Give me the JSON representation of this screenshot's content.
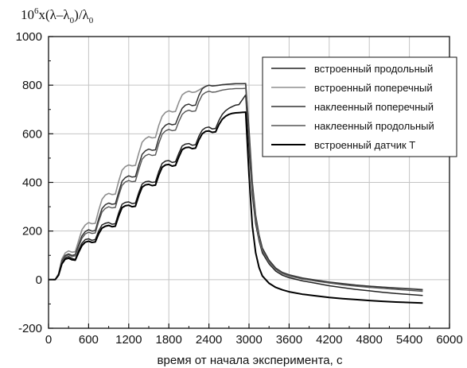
{
  "chart_data": {
    "type": "line",
    "title": "",
    "xlabel": "время от начала эксперимента, с",
    "ylabel": {
      "parts": [
        "10",
        "6",
        "x(λ–λ",
        "0",
        ")/λ",
        "0"
      ]
    },
    "xlim": [
      0,
      6000
    ],
    "ylim": [
      -200,
      1000
    ],
    "xticks": [
      "0",
      "600",
      "1200",
      "1800",
      "2400",
      "3000",
      "3600",
      "4200",
      "4800",
      "5400",
      "6000"
    ],
    "yticks": [
      "-200",
      "0",
      "200",
      "400",
      "600",
      "800",
      "1000"
    ],
    "grid": true,
    "legend_position": "top-right",
    "series": [
      {
        "name": "встроенный продольный",
        "color": "#222222",
        "x": [
          0,
          100,
          150,
          200,
          250,
          300,
          350,
          400,
          450,
          500,
          550,
          600,
          650,
          700,
          750,
          800,
          850,
          900,
          950,
          1000,
          1050,
          1100,
          1150,
          1200,
          1250,
          1300,
          1350,
          1400,
          1450,
          1500,
          1550,
          1600,
          1650,
          1700,
          1750,
          1800,
          1850,
          1900,
          1950,
          2000,
          2050,
          2100,
          2150,
          2200,
          2250,
          2300,
          2350,
          2400,
          2450,
          2500,
          2550,
          2600,
          2650,
          2700,
          2750,
          2800,
          2850,
          2900,
          2950,
          3000,
          3050,
          3100,
          3150,
          3200,
          3300,
          3400,
          3500,
          3600,
          3800,
          4000,
          4200,
          4400,
          4600,
          4800,
          5000,
          5200,
          5400,
          5600
        ],
        "y": [
          0,
          0,
          20,
          70,
          90,
          95,
          88,
          83,
          120,
          150,
          165,
          168,
          162,
          165,
          200,
          225,
          232,
          235,
          228,
          230,
          275,
          310,
          318,
          320,
          313,
          315,
          358,
          393,
          403,
          405,
          400,
          402,
          445,
          478,
          488,
          490,
          482,
          485,
          520,
          550,
          558,
          560,
          553,
          555,
          590,
          615,
          625,
          628,
          620,
          622,
          655,
          680,
          695,
          705,
          712,
          718,
          720,
          740,
          760,
          540,
          350,
          230,
          160,
          110,
          65,
          35,
          18,
          8,
          -5,
          -15,
          -25,
          -33,
          -40,
          -46,
          -52,
          -57,
          -61,
          -65
        ]
      },
      {
        "name": "встроенный поперечный",
        "color": "#8f8f8f",
        "x": [
          0,
          100,
          150,
          200,
          250,
          300,
          350,
          400,
          450,
          500,
          550,
          600,
          650,
          700,
          750,
          800,
          850,
          900,
          950,
          1000,
          1050,
          1100,
          1150,
          1200,
          1250,
          1300,
          1350,
          1400,
          1450,
          1500,
          1550,
          1600,
          1650,
          1700,
          1750,
          1800,
          1850,
          1900,
          1950,
          2000,
          2050,
          2100,
          2150,
          2200,
          2250,
          2300,
          2350,
          2400,
          2450,
          2500,
          2550,
          2600,
          2650,
          2700,
          2750,
          2800,
          2850,
          2900,
          2950,
          3000,
          3050,
          3100,
          3150,
          3200,
          3300,
          3400,
          3500,
          3600,
          3800,
          4000,
          4200,
          4400,
          4600,
          4800,
          5000,
          5200,
          5400,
          5600
        ],
        "y": [
          0,
          0,
          25,
          85,
          110,
          118,
          113,
          115,
          160,
          205,
          225,
          235,
          230,
          232,
          285,
          330,
          348,
          355,
          350,
          352,
          405,
          450,
          465,
          472,
          468,
          470,
          520,
          565,
          580,
          588,
          583,
          585,
          635,
          672,
          688,
          695,
          690,
          692,
          730,
          760,
          770,
          775,
          770,
          772,
          780,
          788,
          795,
          800,
          797,
          798,
          800,
          802,
          803,
          804,
          805,
          806,
          806,
          806,
          807,
          600,
          380,
          250,
          170,
          120,
          72,
          42,
          24,
          14,
          3,
          -5,
          -12,
          -18,
          -23,
          -27,
          -31,
          -34,
          -37,
          -40
        ]
      },
      {
        "name": "наклеенный поперечный",
        "color": "#333333",
        "x": [
          0,
          100,
          150,
          200,
          250,
          300,
          350,
          400,
          450,
          500,
          550,
          600,
          650,
          700,
          750,
          800,
          850,
          900,
          950,
          1000,
          1050,
          1100,
          1150,
          1200,
          1250,
          1300,
          1350,
          1400,
          1450,
          1500,
          1550,
          1600,
          1650,
          1700,
          1750,
          1800,
          1850,
          1900,
          1950,
          2000,
          2050,
          2100,
          2150,
          2200,
          2250,
          2300,
          2350,
          2400,
          2450,
          2500,
          2550,
          2600,
          2650,
          2700,
          2750,
          2800,
          2850,
          2900,
          2950,
          3000,
          3050,
          3100,
          3150,
          3200,
          3300,
          3400,
          3500,
          3600,
          3800,
          4000,
          4200,
          4400,
          4600,
          4800,
          5000,
          5200,
          5400,
          5600
        ],
        "y": [
          0,
          0,
          22,
          78,
          100,
          106,
          100,
          103,
          142,
          180,
          198,
          205,
          200,
          202,
          250,
          292,
          308,
          315,
          310,
          312,
          360,
          405,
          420,
          427,
          422,
          424,
          472,
          515,
          530,
          537,
          532,
          534,
          582,
          620,
          635,
          642,
          637,
          640,
          675,
          705,
          718,
          722,
          716,
          718,
          758,
          785,
          795,
          800,
          797,
          798,
          800,
          802,
          803,
          804,
          805,
          806,
          806,
          806,
          806,
          620,
          400,
          265,
          185,
          130,
          80,
          48,
          30,
          20,
          7,
          -2,
          -10,
          -16,
          -22,
          -27,
          -31,
          -35,
          -38,
          -42
        ]
      },
      {
        "name": "наклеенный продольный",
        "color": "#555555",
        "x": [
          0,
          100,
          150,
          200,
          250,
          300,
          350,
          400,
          450,
          500,
          550,
          600,
          650,
          700,
          750,
          800,
          850,
          900,
          950,
          1000,
          1050,
          1100,
          1150,
          1200,
          1250,
          1300,
          1350,
          1400,
          1450,
          1500,
          1550,
          1600,
          1650,
          1700,
          1750,
          1800,
          1850,
          1900,
          1950,
          2000,
          2050,
          2100,
          2150,
          2200,
          2250,
          2300,
          2350,
          2400,
          2450,
          2500,
          2550,
          2600,
          2650,
          2700,
          2750,
          2800,
          2850,
          2900,
          2950,
          3000,
          3050,
          3100,
          3150,
          3200,
          3300,
          3400,
          3500,
          3600,
          3800,
          4000,
          4200,
          4400,
          4600,
          4800,
          5000,
          5200,
          5400,
          5600
        ],
        "y": [
          0,
          0,
          21,
          74,
          96,
          102,
          96,
          98,
          135,
          170,
          188,
          195,
          190,
          192,
          238,
          278,
          293,
          300,
          295,
          297,
          345,
          388,
          402,
          408,
          403,
          405,
          452,
          495,
          510,
          516,
          511,
          513,
          560,
          598,
          612,
          618,
          613,
          615,
          650,
          680,
          692,
          697,
          692,
          694,
          732,
          760,
          770,
          775,
          771,
          772,
          776,
          780,
          782,
          784,
          785,
          786,
          786,
          786,
          787,
          600,
          385,
          255,
          175,
          122,
          74,
          43,
          26,
          16,
          3,
          -6,
          -14,
          -21,
          -27,
          -32,
          -36,
          -40,
          -44,
          -48
        ]
      },
      {
        "name": "встроенный датчик Т",
        "color": "#000000",
        "x": [
          0,
          100,
          150,
          200,
          250,
          300,
          350,
          400,
          450,
          500,
          550,
          600,
          650,
          700,
          750,
          800,
          850,
          900,
          950,
          1000,
          1050,
          1100,
          1150,
          1200,
          1250,
          1300,
          1350,
          1400,
          1450,
          1500,
          1550,
          1600,
          1650,
          1700,
          1750,
          1800,
          1850,
          1900,
          1950,
          2000,
          2050,
          2100,
          2150,
          2200,
          2250,
          2300,
          2350,
          2400,
          2450,
          2500,
          2550,
          2600,
          2650,
          2700,
          2750,
          2800,
          2850,
          2900,
          2950,
          3000,
          3050,
          3100,
          3150,
          3200,
          3300,
          3400,
          3500,
          3600,
          3800,
          4000,
          4200,
          4400,
          4600,
          4800,
          5000,
          5200,
          5400,
          5600
        ],
        "y": [
          0,
          0,
          18,
          65,
          84,
          88,
          82,
          80,
          112,
          140,
          154,
          158,
          153,
          155,
          188,
          212,
          220,
          223,
          218,
          220,
          262,
          296,
          304,
          306,
          300,
          302,
          345,
          380,
          390,
          392,
          387,
          389,
          430,
          462,
          472,
          474,
          467,
          470,
          505,
          535,
          543,
          545,
          539,
          541,
          575,
          600,
          610,
          612,
          606,
          608,
          638,
          660,
          672,
          680,
          684,
          686,
          687,
          688,
          689,
          430,
          220,
          110,
          50,
          15,
          -15,
          -32,
          -42,
          -50,
          -60,
          -67,
          -73,
          -78,
          -82,
          -86,
          -89,
          -92,
          -94,
          -96
        ]
      }
    ]
  }
}
